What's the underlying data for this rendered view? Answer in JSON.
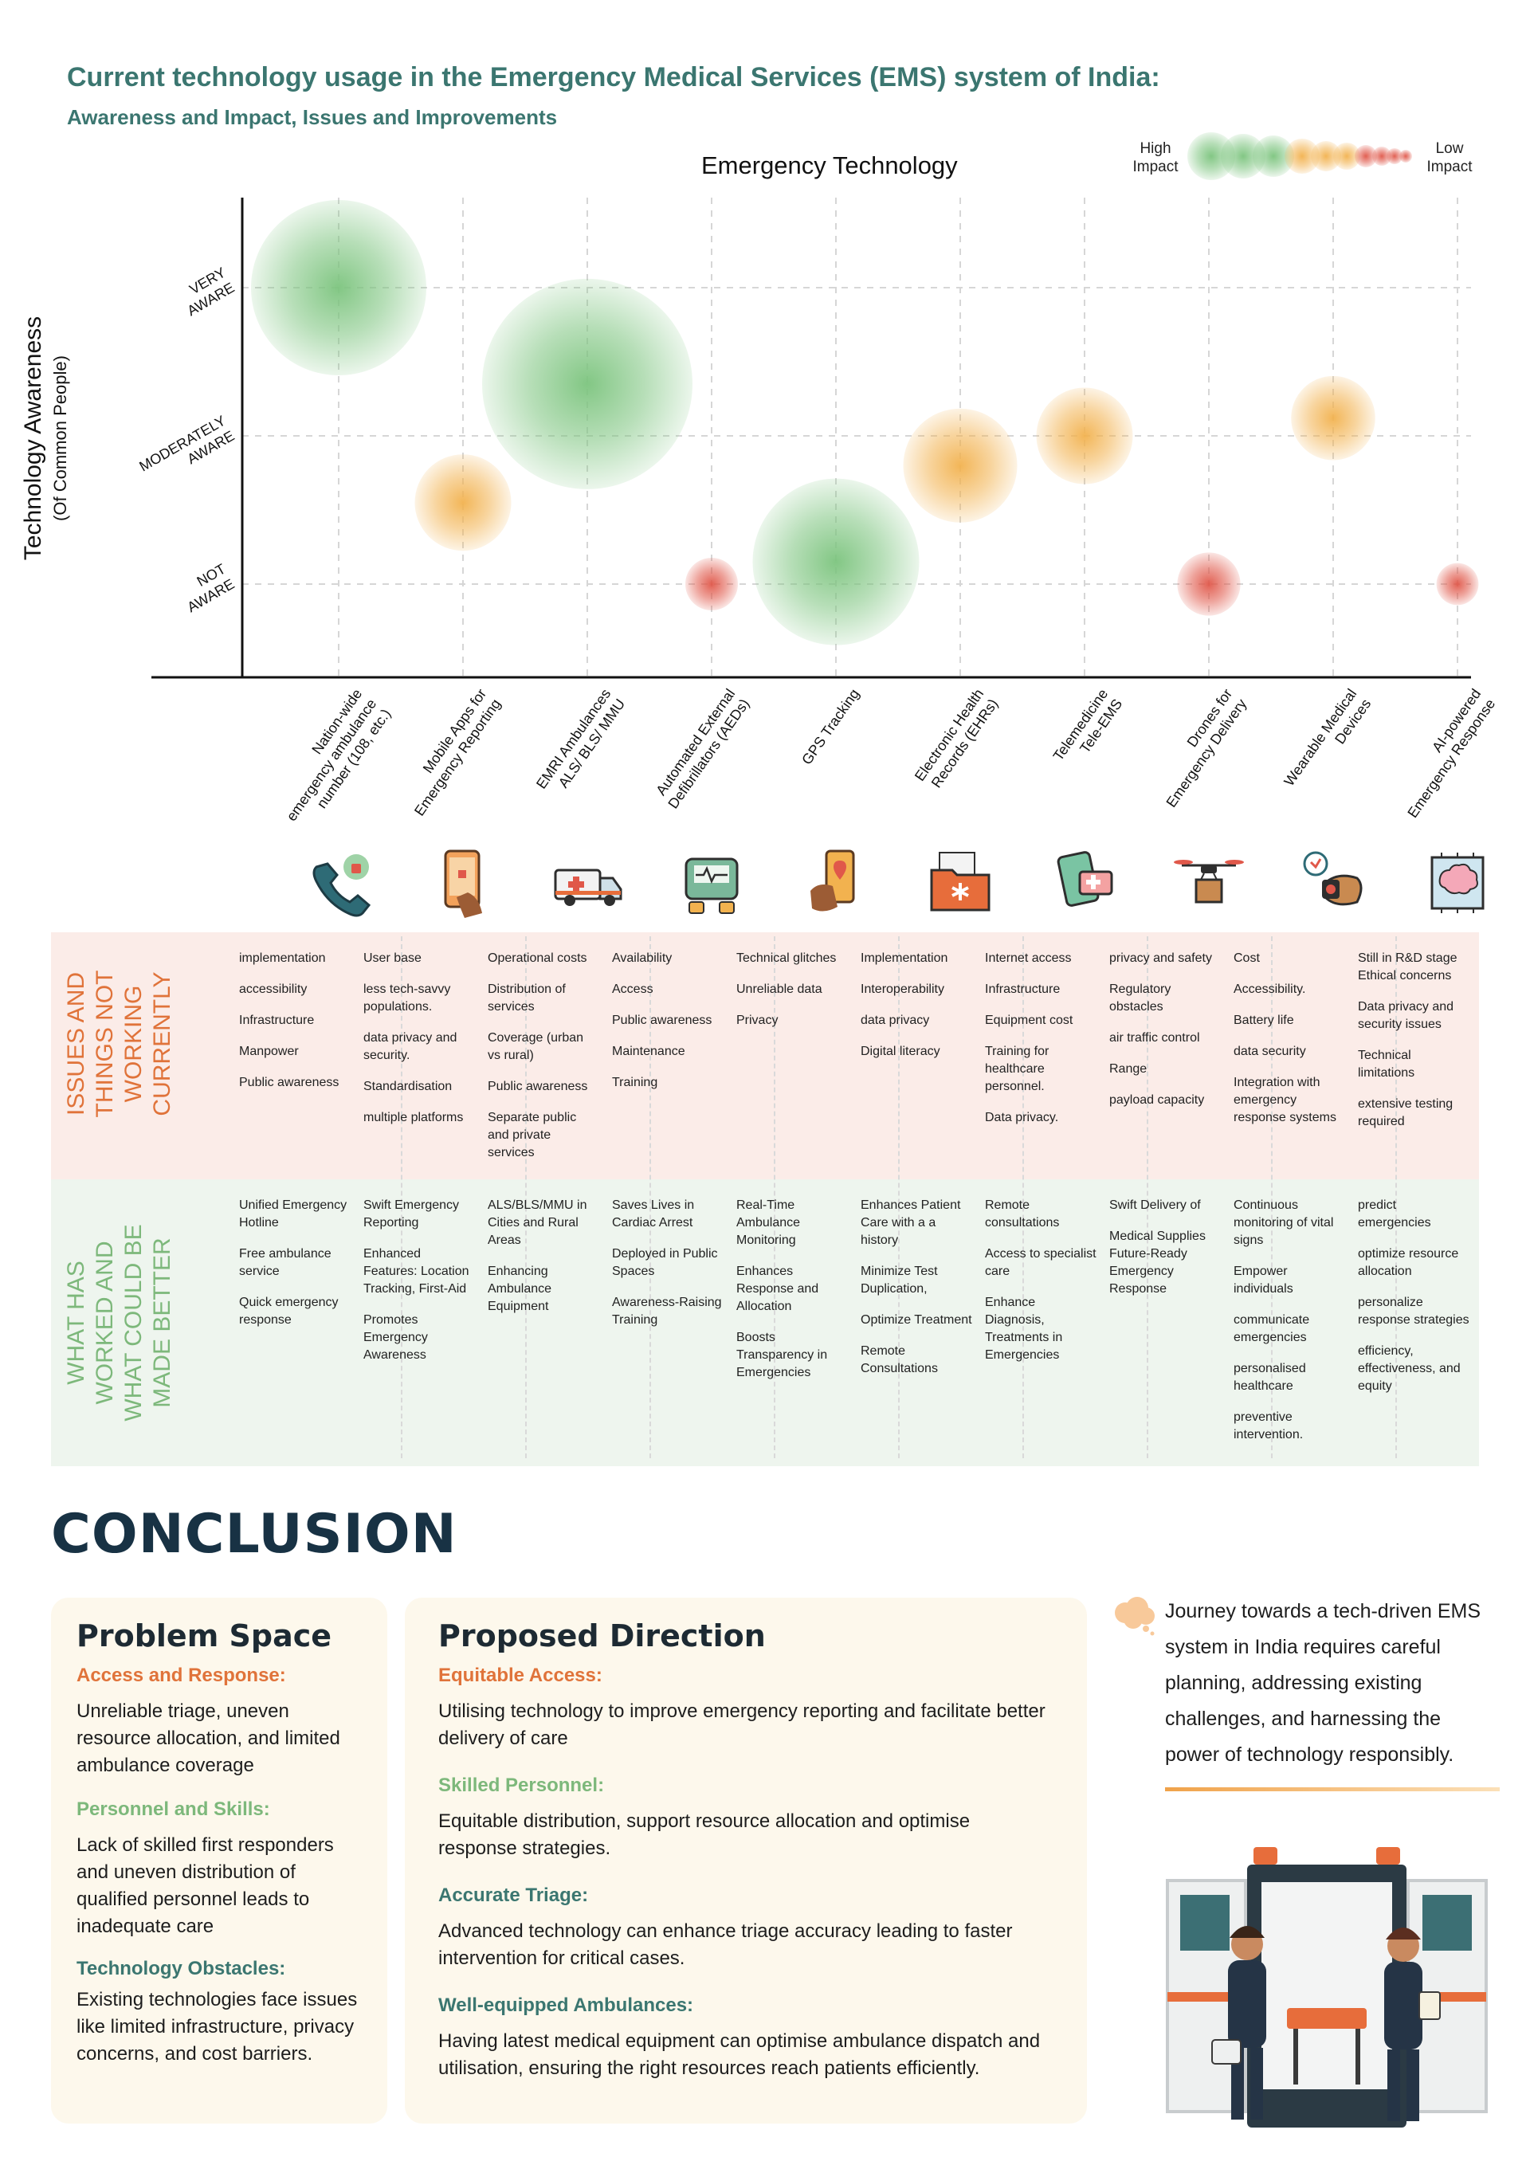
{
  "header": {
    "title": "Current technology usage in the Emergency Medical Services (EMS) system of India:",
    "subtitle": "Awareness and Impact, Issues and Improvements"
  },
  "chart_data": {
    "type": "scatter",
    "title": "Emergency Technology",
    "ylabel": "Technology Awareness",
    "ylabel_sub": "(Of Common People)",
    "y_categories": [
      "NOT AWARE",
      "MODERATELY AWARE",
      "VERY AWARE"
    ],
    "legend": {
      "high": "High Impact",
      "low": "Low Impact"
    },
    "points": [
      {
        "x": "Nation-wide emergency ambulance number (108, etc.)",
        "awareness": 2.0,
        "impact": "high",
        "size": 1.0
      },
      {
        "x": "Mobile Apps for Emergency Reporting",
        "awareness": 0.55,
        "impact": "medium",
        "size": 0.55
      },
      {
        "x": "EMRI Ambulances ALS/ BLS/ MMU",
        "awareness": 1.35,
        "impact": "high",
        "size": 1.2
      },
      {
        "x": "Automated External Defibrillators (AEDs)",
        "awareness": 0.0,
        "impact": "low",
        "size": 0.3
      },
      {
        "x": "GPS Tracking",
        "awareness": 0.15,
        "impact": "high",
        "size": 0.95
      },
      {
        "x": "Electronic Health Records (EHRs)",
        "awareness": 0.8,
        "impact": "medium",
        "size": 0.65
      },
      {
        "x": "Telemedicine Tele-EMS",
        "awareness": 1.0,
        "impact": "medium",
        "size": 0.55
      },
      {
        "x": "Drones for Emergency Delivery",
        "awareness": 0.0,
        "impact": "low",
        "size": 0.36
      },
      {
        "x": "Wearable Medical Devices",
        "awareness": 1.12,
        "impact": "medium",
        "size": 0.48
      },
      {
        "x": "AI-powered Emergency Response",
        "awareness": 0.0,
        "impact": "low",
        "size": 0.24
      }
    ],
    "colors": {
      "high": "#7cc47e",
      "medium": "#f2b24f",
      "low": "#e0584a"
    },
    "grid": true
  },
  "bands": {
    "issues_label": "ISSUES AND THINGS NOT WORKING CURRENTLY",
    "worked_label": "WHAT HAS WORKED AND WHAT COULD BE MADE BETTER"
  },
  "icons": [
    "phone-alert-icon",
    "mobile-app-icon",
    "ambulance-icon",
    "defibrillator-icon",
    "gps-phone-icon",
    "medical-folder-icon",
    "telemedicine-icon",
    "drone-icon",
    "smartwatch-icon",
    "ai-brain-icon"
  ],
  "issues": [
    [
      "implementation",
      "accessibility",
      "Infrastructure",
      "Manpower",
      "Public awareness"
    ],
    [
      "User base",
      "less tech-savvy populations.",
      "data privacy and security.",
      "Standardisation",
      "multiple platforms"
    ],
    [
      "Operational costs",
      "Distribution of services",
      "Coverage (urban vs rural)",
      "Public awareness",
      "Separate public and private services"
    ],
    [
      "Availability",
      "Access",
      "Public awareness",
      "Maintenance",
      "Training"
    ],
    [
      "Technical glitches",
      "Unreliable data",
      "Privacy"
    ],
    [
      "Implementation",
      "Interoperability",
      "data privacy",
      "Digital literacy"
    ],
    [
      "Internet access",
      "Infrastructure",
      "Equipment cost",
      "Training for healthcare personnel.",
      "Data privacy."
    ],
    [
      "privacy and safety",
      "Regulatory obstacles",
      "air traffic control",
      "Range",
      "payload capacity"
    ],
    [
      "Cost",
      "Accessibility.",
      "Battery life",
      "data security",
      "Integration with emergency response systems"
    ],
    [
      "Still in R&D stage Ethical concerns",
      "Data privacy and security issues",
      "Technical limitations",
      "extensive testing required"
    ]
  ],
  "worked": [
    [
      "Unified Emergency Hotline",
      "Free ambulance service",
      "Quick emergency response"
    ],
    [
      "Swift Emergency Reporting",
      "Enhanced Features: Location Tracking, First-Aid",
      "Promotes Emergency Awareness"
    ],
    [
      "ALS/BLS/MMU in Cities and Rural Areas",
      "Enhancing Ambulance Equipment"
    ],
    [
      "Saves Lives in Cardiac Arrest",
      "Deployed in Public Spaces",
      "Awareness-Raising Training"
    ],
    [
      "Real-Time Ambulance Monitoring",
      "Enhances Response and Allocation",
      "Boosts Transparency in Emergencies"
    ],
    [
      "Enhances Patient Care with a a history",
      "Minimize Test Duplication,",
      "Optimize Treatment",
      "Remote Consultations"
    ],
    [
      "Remote consultations",
      "Access to specialist care",
      "Enhance Diagnosis, Treatments in Emergencies"
    ],
    [
      "Swift Delivery of",
      "Medical Supplies Future-Ready Emergency Response"
    ],
    [
      "Continuous monitoring of vital signs",
      "Empower individuals",
      "communicate emergencies",
      "personalised healthcare",
      "preventive intervention."
    ],
    [
      "predict emergencies",
      "optimize resource allocation",
      "personalize response strategies",
      "efficiency, effectiveness, and equity"
    ]
  ],
  "conclusion": {
    "heading": "CONCLUSION",
    "problem": {
      "title": "Problem Space",
      "sections": [
        {
          "head": "Access and Response:",
          "text": "Unreliable triage, uneven resource allocation, and limited ambulance coverage"
        },
        {
          "head": "Personnel and Skills:",
          "text": "Lack of skilled first responders and uneven distribution of qualified personnel leads to inadequate care"
        },
        {
          "head": "Technology Obstacles:",
          "text": "Existing technologies face issues like limited infrastructure, privacy concerns, and cost barriers."
        }
      ]
    },
    "direction": {
      "title": "Proposed Direction",
      "sections": [
        {
          "head": "Equitable Access:",
          "text": "Utilising technology to improve emergency reporting and facilitate better delivery of care"
        },
        {
          "head": "Skilled Personnel:",
          "text": "Equitable distribution, support resource allocation and optimise response strategies."
        },
        {
          "head": "Accurate Triage:",
          "text": "Advanced technology can enhance triage accuracy leading to faster intervention for critical cases."
        },
        {
          "head": "Well-equipped Ambulances:",
          "text": "Having latest medical equipment can optimise ambulance dispatch and utilisation, ensuring the right resources reach patients efficiently."
        }
      ]
    },
    "journey": "Journey towards a tech-driven EMS system in India requires careful planning, addressing existing challenges, and harnessing the power of technology responsibly."
  }
}
